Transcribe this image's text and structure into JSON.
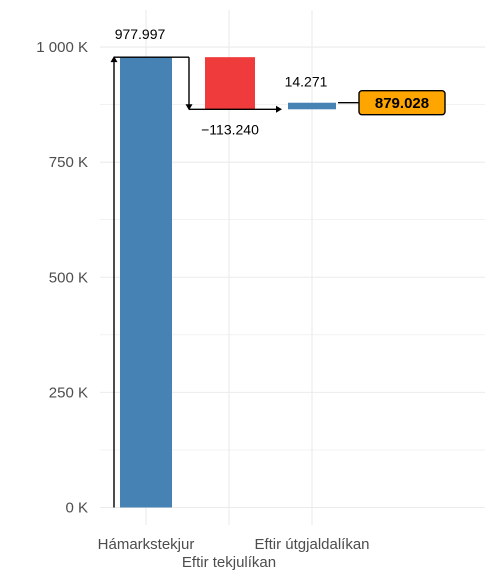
{
  "chart_data": {
    "type": "bar",
    "categories": [
      "Hámarkstekjur",
      "Eftir tekjulíkan",
      "Eftir útgjaldalíkan"
    ],
    "values": [
      977997,
      -113240,
      14271
    ],
    "result_value": 879028,
    "data_labels": [
      "977.997",
      "−113.240",
      "14.271"
    ],
    "final_label": "879.028",
    "y_ticks": [
      0,
      250000,
      500000,
      750000,
      1000000
    ],
    "y_tick_labels": [
      "0 K",
      "250 K",
      "500 K",
      "750 K",
      "1 000 K"
    ],
    "ylim": [
      -25000,
      1050000
    ],
    "grid": true,
    "colors": {
      "base": "#4682b4",
      "decrease": "#ef3b3b",
      "increase": "#4682b4",
      "final_box": "#ffa500",
      "grid": "#ebebeb"
    }
  }
}
